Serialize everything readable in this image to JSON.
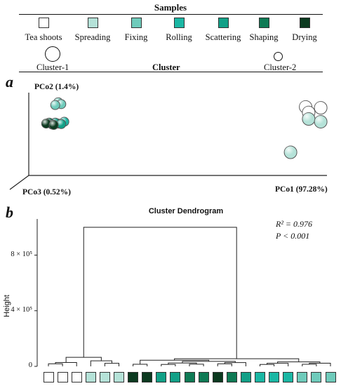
{
  "legend": {
    "title": "Samples",
    "stages": [
      {
        "label": "Tea shoots",
        "color": "#ffffff"
      },
      {
        "label": "Spreading",
        "color": "#b5e2d8"
      },
      {
        "label": "Fixing",
        "color": "#6fcbbb"
      },
      {
        "label": "Rolling",
        "color": "#1bb7a4"
      },
      {
        "label": "Scattering",
        "color": "#12a087"
      },
      {
        "label": "Shaping",
        "color": "#0f7a55"
      },
      {
        "label": "Drying",
        "color": "#0c3a20"
      }
    ],
    "cluster_title": "Cluster",
    "clusters": [
      {
        "label": "Cluster-1"
      },
      {
        "label": "Cluster-2"
      }
    ]
  },
  "panel_a": {
    "letter": "a"
  },
  "panel_b": {
    "letter": "b"
  },
  "chart_data": [
    {
      "type": "scatter",
      "title": "",
      "xlabel": "PCo1 (97.28%)",
      "ylabel": "PCo2 (1.4%)",
      "zlabel": "PCo3 (0.52%)",
      "grid": false,
      "series": [
        {
          "stage": "Tea shoots",
          "color": "#ffffff",
          "points": [
            [
              0.92,
              0.74
            ],
            [
              0.97,
              0.73
            ],
            [
              0.93,
              0.68
            ]
          ]
        },
        {
          "stage": "Spreading",
          "color": "#b5e2d8",
          "points": [
            [
              0.93,
              0.61
            ],
            [
              0.97,
              0.58
            ],
            [
              0.87,
              0.25
            ]
          ]
        },
        {
          "stage": "Fixing",
          "color": "#6fcbbb",
          "points": [
            [
              0.1,
              0.79
            ],
            [
              0.11,
              0.77
            ],
            [
              0.09,
              0.76
            ]
          ]
        },
        {
          "stage": "Rolling",
          "color": "#1bb7a4",
          "points": [
            [
              0.12,
              0.58
            ],
            [
              0.1,
              0.56
            ]
          ]
        },
        {
          "stage": "Scattering",
          "color": "#12a087",
          "points": [
            [
              0.09,
              0.57
            ],
            [
              0.11,
              0.555
            ]
          ]
        },
        {
          "stage": "Shaping",
          "color": "#0f7a55",
          "points": [
            [
              0.07,
              0.57
            ],
            [
              0.08,
              0.55
            ]
          ]
        },
        {
          "stage": "Drying",
          "color": "#0c3a20",
          "points": [
            [
              0.06,
              0.56
            ],
            [
              0.085,
              0.545
            ]
          ]
        }
      ]
    },
    {
      "type": "dendrogram",
      "title": "Cluster Dendrogram",
      "ylabel": "Height",
      "yticks": [
        {
          "value": 0,
          "label": "0"
        },
        {
          "value": 400000,
          "label": "4 × 10⁵"
        },
        {
          "value": 800000,
          "label": "8 × 10⁵"
        }
      ],
      "ylim": [
        0,
        1060000
      ],
      "root_height": 1000000,
      "stats": {
        "r2": "R² = 0.976",
        "p": "P < 0.001"
      },
      "leaves": [
        {
          "stage": "Tea shoots",
          "color": "#ffffff"
        },
        {
          "stage": "Tea shoots",
          "color": "#ffffff"
        },
        {
          "stage": "Tea shoots",
          "color": "#ffffff"
        },
        {
          "stage": "Spreading",
          "color": "#b5e2d8"
        },
        {
          "stage": "Spreading",
          "color": "#b5e2d8"
        },
        {
          "stage": "Spreading",
          "color": "#b5e2d8"
        },
        {
          "stage": "Drying",
          "color": "#0c3a20"
        },
        {
          "stage": "Drying",
          "color": "#0c3a20"
        },
        {
          "stage": "Scattering",
          "color": "#12a087"
        },
        {
          "stage": "Scattering",
          "color": "#12a087"
        },
        {
          "stage": "Shaping",
          "color": "#0f7a55"
        },
        {
          "stage": "Shaping",
          "color": "#0f7a55"
        },
        {
          "stage": "Drying",
          "color": "#0c3a20"
        },
        {
          "stage": "Shaping",
          "color": "#0f7a55"
        },
        {
          "stage": "Scattering",
          "color": "#12a087"
        },
        {
          "stage": "Rolling",
          "color": "#1bb7a4"
        },
        {
          "stage": "Rolling",
          "color": "#1bb7a4"
        },
        {
          "stage": "Rolling",
          "color": "#1bb7a4"
        },
        {
          "stage": "Fixing",
          "color": "#6fcbbb"
        },
        {
          "stage": "Fixing",
          "color": "#6fcbbb"
        },
        {
          "stage": "Fixing",
          "color": "#6fcbbb"
        }
      ],
      "merges": [
        {
          "a": 0,
          "b": 1,
          "h": 18000
        },
        {
          "a": 21,
          "b": 2,
          "h": 28000
        },
        {
          "a": 4,
          "b": 5,
          "h": 22000
        },
        {
          "a": 3,
          "b": 23,
          "h": 40000
        },
        {
          "a": 22,
          "b": 24,
          "h": 65000
        },
        {
          "a": 6,
          "b": 7,
          "h": 15000
        },
        {
          "a": 8,
          "b": 9,
          "h": 14000
        },
        {
          "a": 10,
          "b": 11,
          "h": 16000
        },
        {
          "a": 27,
          "b": 28,
          "h": 24000
        },
        {
          "a": 12,
          "b": 13,
          "h": 18000
        },
        {
          "a": 30,
          "b": 14,
          "h": 27000
        },
        {
          "a": 29,
          "b": 31,
          "h": 36000
        },
        {
          "a": 26,
          "b": 32,
          "h": 44000
        },
        {
          "a": 15,
          "b": 16,
          "h": 14000
        },
        {
          "a": 34,
          "b": 17,
          "h": 22000
        },
        {
          "a": 18,
          "b": 19,
          "h": 15000
        },
        {
          "a": 36,
          "b": 20,
          "h": 23000
        },
        {
          "a": 35,
          "b": 37,
          "h": 32000
        },
        {
          "a": 33,
          "b": 38,
          "h": 55000
        },
        {
          "a": 25,
          "b": 39,
          "h": 1000000
        }
      ]
    }
  ]
}
